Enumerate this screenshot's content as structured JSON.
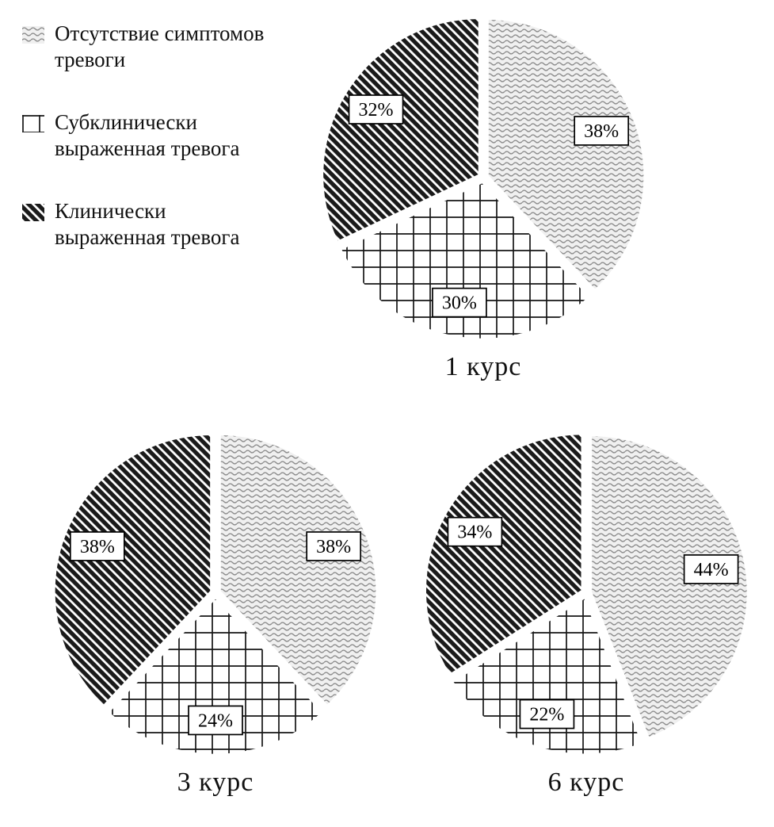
{
  "accent_colors": {
    "ink": "#111111",
    "wave_bg": "#f0f0f0",
    "wave_stroke": "#8c8c8c",
    "paper": "#ffffff"
  },
  "legend": {
    "items": [
      {
        "label": "Отсутствие симптомов\nтревоги",
        "pattern": "waves"
      },
      {
        "label": "Субклинически\nвыраженная тревога",
        "pattern": "grid"
      },
      {
        "label": "Клинически\nвыраженная тревога",
        "pattern": "diagonal"
      }
    ]
  },
  "chart_data": {
    "type": "pie",
    "legend_position": "top-left",
    "value_suffix": "%",
    "categories": [
      "Отсутствие симптомов тревоги",
      "Субклинически выраженная тревога",
      "Клинически выраженная тревога"
    ],
    "patterns": [
      "waves",
      "grid",
      "diagonal"
    ],
    "charts": [
      {
        "title": "1 курс",
        "values": [
          38,
          30,
          32
        ],
        "labels": [
          "38%",
          "30%",
          "32%"
        ]
      },
      {
        "title": "3 курс",
        "values": [
          38,
          24,
          38
        ],
        "labels": [
          "38%",
          "24%",
          "38%"
        ]
      },
      {
        "title": "6 курс",
        "values": [
          44,
          22,
          34
        ],
        "labels": [
          "44%",
          "22%",
          "34%"
        ]
      }
    ]
  }
}
